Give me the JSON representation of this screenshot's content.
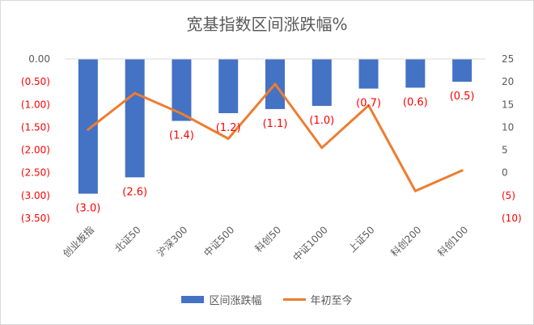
{
  "chart_data": {
    "type": "bar",
    "title": "宽基指数区间涨跌幅%",
    "categories": [
      "创业板指",
      "北证50",
      "沪深300",
      "中证500",
      "科创50",
      "中证1000",
      "上证50",
      "科创200",
      "科创100"
    ],
    "series": [
      {
        "name": "区间涨跌幅",
        "type": "bar",
        "axis": "left",
        "color": "#4472c4",
        "values": [
          -2.96,
          -2.6,
          -1.36,
          -1.19,
          -1.1,
          -1.03,
          -0.65,
          -0.63,
          -0.5
        ],
        "data_labels": [
          "(3.0)",
          "(2.6)",
          "(1.4)",
          "(1.2)",
          "(1.1)",
          "(1.0)",
          "(0.7)",
          "(0.6)",
          "(0.5)"
        ]
      },
      {
        "name": "年初至今",
        "type": "line",
        "axis": "right",
        "color": "#ed7d31",
        "values": [
          9.5,
          17.5,
          13.0,
          7.5,
          19.5,
          5.5,
          14.8,
          -4.0,
          0.5
        ]
      }
    ],
    "left_axis": {
      "ylim": [
        -3.5,
        0
      ],
      "ticks": [
        0,
        -0.5,
        -1.0,
        -1.5,
        -2.0,
        -2.5,
        -3.0,
        -3.5
      ],
      "tick_labels": [
        "0.00",
        "(0.50)",
        "(1.00)",
        "(1.50)",
        "(2.00)",
        "(2.50)",
        "(3.00)",
        "(3.50)"
      ]
    },
    "right_axis": {
      "ylim": [
        -10,
        25
      ],
      "ticks": [
        25,
        20,
        15,
        10,
        5,
        0,
        -5,
        -10
      ],
      "tick_labels": [
        "25",
        "20",
        "15",
        "10",
        "5",
        "0",
        "(5)",
        "(10)"
      ]
    },
    "grid": false,
    "legend_position": "bottom",
    "negative_label_color": "#ff0000"
  }
}
